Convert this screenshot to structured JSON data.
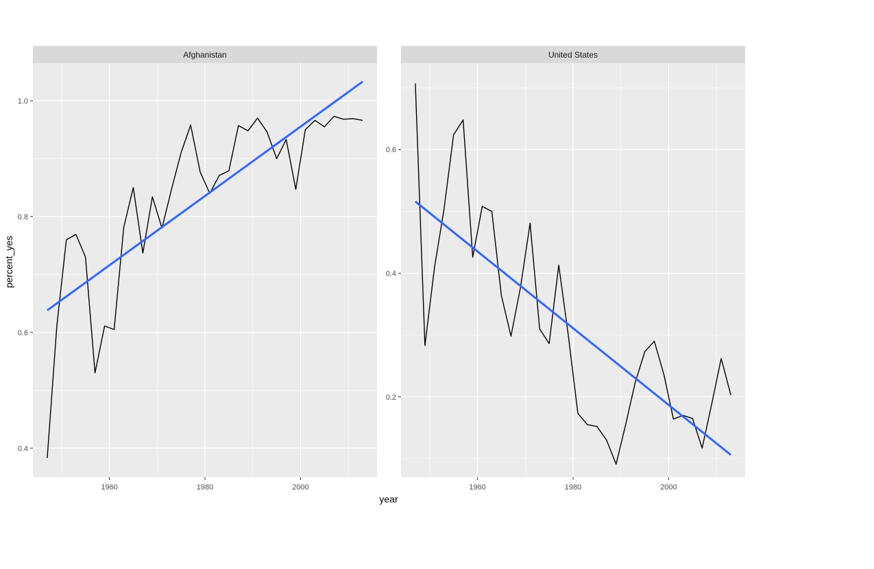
{
  "colors": {
    "panel_background": "#ebebeb",
    "strip_background": "#d9d9d9",
    "grid_major": "#ffffff",
    "series_line": "#000000",
    "trend_line": "#3366ff"
  },
  "chart_data": {
    "type": "line",
    "xlabel": "year",
    "ylabel": "percent_yes",
    "legend": "none",
    "grid": true,
    "panels": [
      {
        "title": "Afghanistan",
        "xlim": [
          1944,
          2016
        ],
        "ylim": [
          0.35,
          1.065
        ],
        "x_ticks": [
          1960,
          1980,
          2000
        ],
        "y_ticks": [
          0.4,
          0.6,
          0.8,
          1.0
        ],
        "y_tick_labels": [
          "0.4",
          "0.6",
          "0.8",
          "1.0"
        ],
        "series": [
          {
            "x": [
              1947,
              1949,
              1951,
              1953,
              1955,
              1957,
              1959,
              1961,
              1963,
              1965,
              1967,
              1969,
              1971,
              1973,
              1975,
              1977,
              1979,
              1981,
              1983,
              1985,
              1987,
              1989,
              1991,
              1993,
              1995,
              1997,
              1999,
              2001,
              2003,
              2005,
              2007,
              2009,
              2011,
              2013
            ],
            "values": [
              0.383,
              0.611,
              0.76,
              0.769,
              0.73,
              0.53,
              0.611,
              0.605,
              0.781,
              0.85,
              0.737,
              0.834,
              0.78,
              0.847,
              0.91,
              0.958,
              0.877,
              0.84,
              0.871,
              0.879,
              0.957,
              0.948,
              0.97,
              0.946,
              0.9,
              0.933,
              0.847,
              0.95,
              0.966,
              0.955,
              0.973,
              0.968,
              0.969,
              0.966
            ]
          }
        ],
        "trend": {
          "x": [
            1947,
            2013
          ],
          "values": [
            0.638,
            1.033
          ]
        }
      },
      {
        "title": "United States",
        "xlim": [
          1944,
          2016
        ],
        "ylim": [
          0.07,
          0.74
        ],
        "x_ticks": [
          1960,
          1980,
          2000
        ],
        "y_ticks": [
          0.2,
          0.4,
          0.6
        ],
        "y_tick_labels": [
          "0.2",
          "0.4",
          "0.6"
        ],
        "series": [
          {
            "x": [
              1947,
              1949,
              1951,
              1953,
              1955,
              1957,
              1959,
              1961,
              1963,
              1965,
              1967,
              1969,
              1971,
              1973,
              1975,
              1977,
              1979,
              1981,
              1983,
              1985,
              1987,
              1989,
              1991,
              1993,
              1995,
              1997,
              1999,
              2001,
              2003,
              2005,
              2007,
              2009,
              2011,
              2013
            ],
            "values": [
              0.707,
              0.283,
              0.409,
              0.504,
              0.624,
              0.648,
              0.426,
              0.508,
              0.5,
              0.364,
              0.298,
              0.377,
              0.481,
              0.31,
              0.286,
              0.413,
              0.3,
              0.173,
              0.155,
              0.152,
              0.13,
              0.091,
              0.155,
              0.223,
              0.273,
              0.29,
              0.236,
              0.164,
              0.17,
              0.165,
              0.117,
              0.188,
              0.262,
              0.203
            ]
          }
        ],
        "trend": {
          "x": [
            1947,
            2013
          ],
          "values": [
            0.516,
            0.106
          ]
        }
      }
    ]
  }
}
